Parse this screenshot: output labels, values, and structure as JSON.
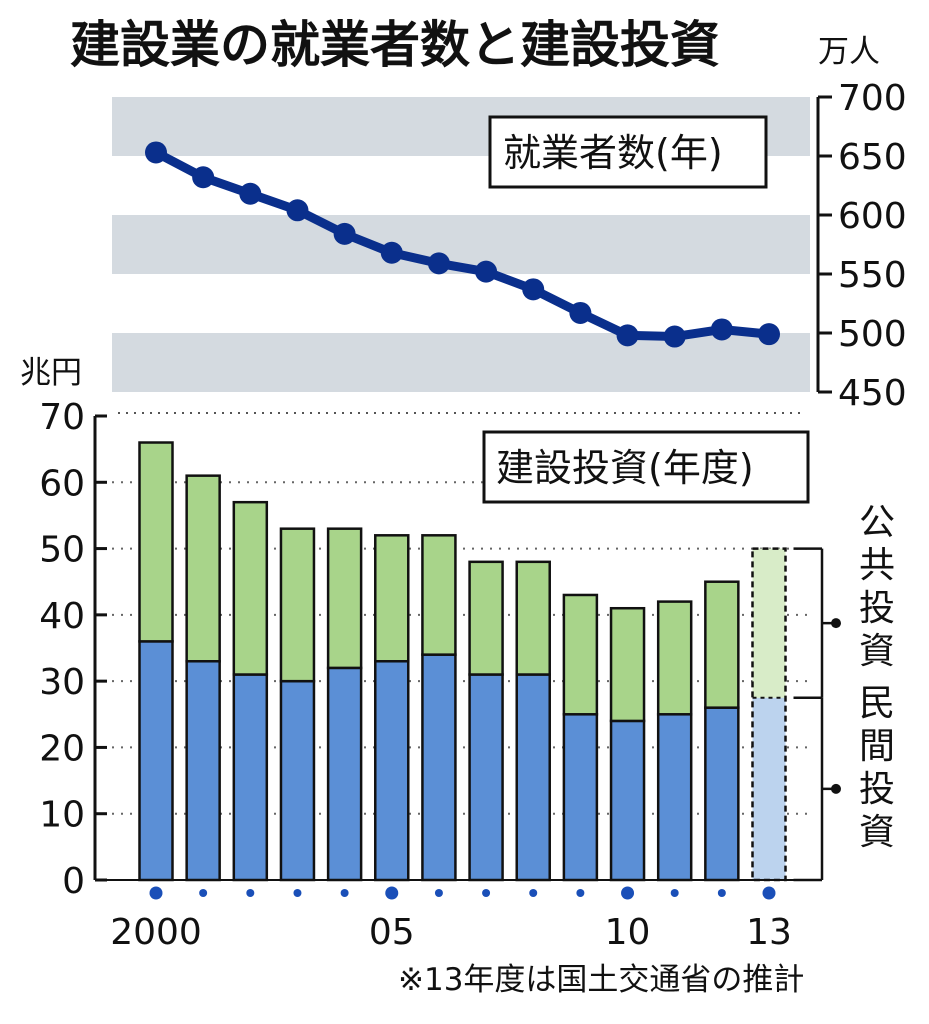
{
  "title": "建設業の就業者数と建設投資",
  "note": "※13年度は国土交通省の推計",
  "colors": {
    "line": "#0a2f8c",
    "band": "#d4dae0",
    "private": "#5b8fd6",
    "public": "#a8d48a",
    "private_est": "#bcd3ee",
    "public_est": "#d8ecc8",
    "ink": "#111111"
  },
  "chart_data": [
    {
      "type": "line",
      "title": "就業者数(年)",
      "ylabel": "万人",
      "ylim": [
        450,
        700
      ],
      "yticks": [
        "700",
        "650",
        "600",
        "550",
        "500",
        "450"
      ],
      "x": [
        2000,
        2001,
        2002,
        2003,
        2004,
        2005,
        2006,
        2007,
        2008,
        2009,
        2010,
        2011,
        2012,
        2013
      ],
      "series": [
        {
          "values": [
            653,
            632,
            618,
            604,
            584,
            568,
            559,
            552,
            537,
            517,
            498,
            497,
            503,
            499
          ]
        }
      ]
    },
    {
      "type": "bar",
      "stacked": true,
      "title": "建設投資(年度)",
      "ylabel": "兆円",
      "ylim": [
        0,
        70
      ],
      "yticks": [
        "70",
        "60",
        "50",
        "40",
        "30",
        "20",
        "10",
        "0"
      ],
      "categories": [
        "2000",
        "01",
        "02",
        "03",
        "04",
        "05",
        "06",
        "07",
        "08",
        "09",
        "10",
        "11",
        "12",
        "13"
      ],
      "xtick_labels": [
        "2000",
        "05",
        "10",
        "13"
      ],
      "series": [
        {
          "name": "民間投資",
          "values": [
            36,
            33,
            31,
            30,
            32,
            33,
            34,
            31,
            31,
            25,
            24,
            25,
            26,
            27.5
          ]
        },
        {
          "name": "公共投資",
          "values": [
            30,
            28,
            26,
            23,
            21,
            19,
            18,
            17,
            17,
            18,
            17,
            17,
            19,
            22.5
          ]
        }
      ],
      "estimated_category": "13"
    }
  ]
}
